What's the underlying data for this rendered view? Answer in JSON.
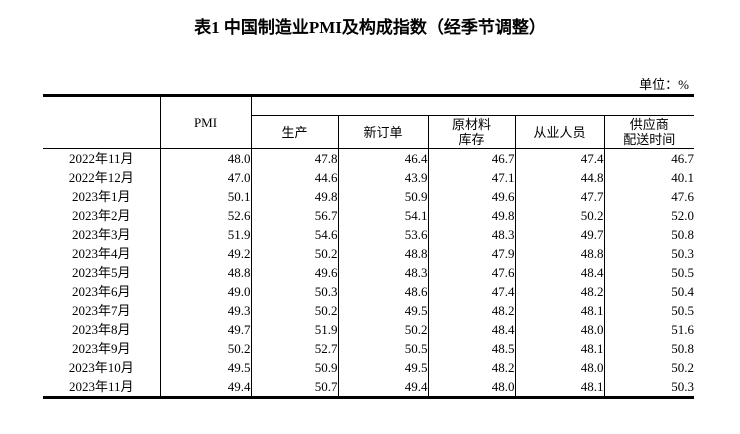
{
  "title": "表1 中国制造业PMI及构成指数（经季节调整）",
  "unit_label": "单位：%",
  "colors": {
    "background": "#ffffff",
    "text": "#000000",
    "border": "#000000"
  },
  "table": {
    "header": {
      "corner_label": "",
      "pmi_label": "PMI",
      "group_blank_label": "",
      "subcols": [
        {
          "lines": [
            "生产"
          ]
        },
        {
          "lines": [
            "新订单"
          ]
        },
        {
          "lines": [
            "原材料",
            "库存"
          ]
        },
        {
          "lines": [
            "从业人员"
          ]
        },
        {
          "lines": [
            "供应商",
            "配送时间"
          ]
        }
      ]
    },
    "rows": [
      {
        "month": "2022年11月",
        "values": [
          "48.0",
          "47.8",
          "46.4",
          "46.7",
          "47.4",
          "46.7"
        ]
      },
      {
        "month": "2022年12月",
        "values": [
          "47.0",
          "44.6",
          "43.9",
          "47.1",
          "44.8",
          "40.1"
        ]
      },
      {
        "month": "2023年1月",
        "values": [
          "50.1",
          "49.8",
          "50.9",
          "49.6",
          "47.7",
          "47.6"
        ]
      },
      {
        "month": "2023年2月",
        "values": [
          "52.6",
          "56.7",
          "54.1",
          "49.8",
          "50.2",
          "52.0"
        ]
      },
      {
        "month": "2023年3月",
        "values": [
          "51.9",
          "54.6",
          "53.6",
          "48.3",
          "49.7",
          "50.8"
        ]
      },
      {
        "month": "2023年4月",
        "values": [
          "49.2",
          "50.2",
          "48.8",
          "47.9",
          "48.8",
          "50.3"
        ]
      },
      {
        "month": "2023年5月",
        "values": [
          "48.8",
          "49.6",
          "48.3",
          "47.6",
          "48.4",
          "50.5"
        ]
      },
      {
        "month": "2023年6月",
        "values": [
          "49.0",
          "50.3",
          "48.6",
          "47.4",
          "48.2",
          "50.4"
        ]
      },
      {
        "month": "2023年7月",
        "values": [
          "49.3",
          "50.2",
          "49.5",
          "48.2",
          "48.1",
          "50.5"
        ]
      },
      {
        "month": "2023年8月",
        "values": [
          "49.7",
          "51.9",
          "50.2",
          "48.4",
          "48.0",
          "51.6"
        ]
      },
      {
        "month": "2023年9月",
        "values": [
          "50.2",
          "52.7",
          "50.5",
          "48.5",
          "48.1",
          "50.8"
        ]
      },
      {
        "month": "2023年10月",
        "values": [
          "49.5",
          "50.9",
          "49.5",
          "48.2",
          "48.0",
          "50.2"
        ]
      },
      {
        "month": "2023年11月",
        "values": [
          "49.4",
          "50.7",
          "49.4",
          "48.0",
          "48.1",
          "50.3"
        ]
      }
    ]
  }
}
